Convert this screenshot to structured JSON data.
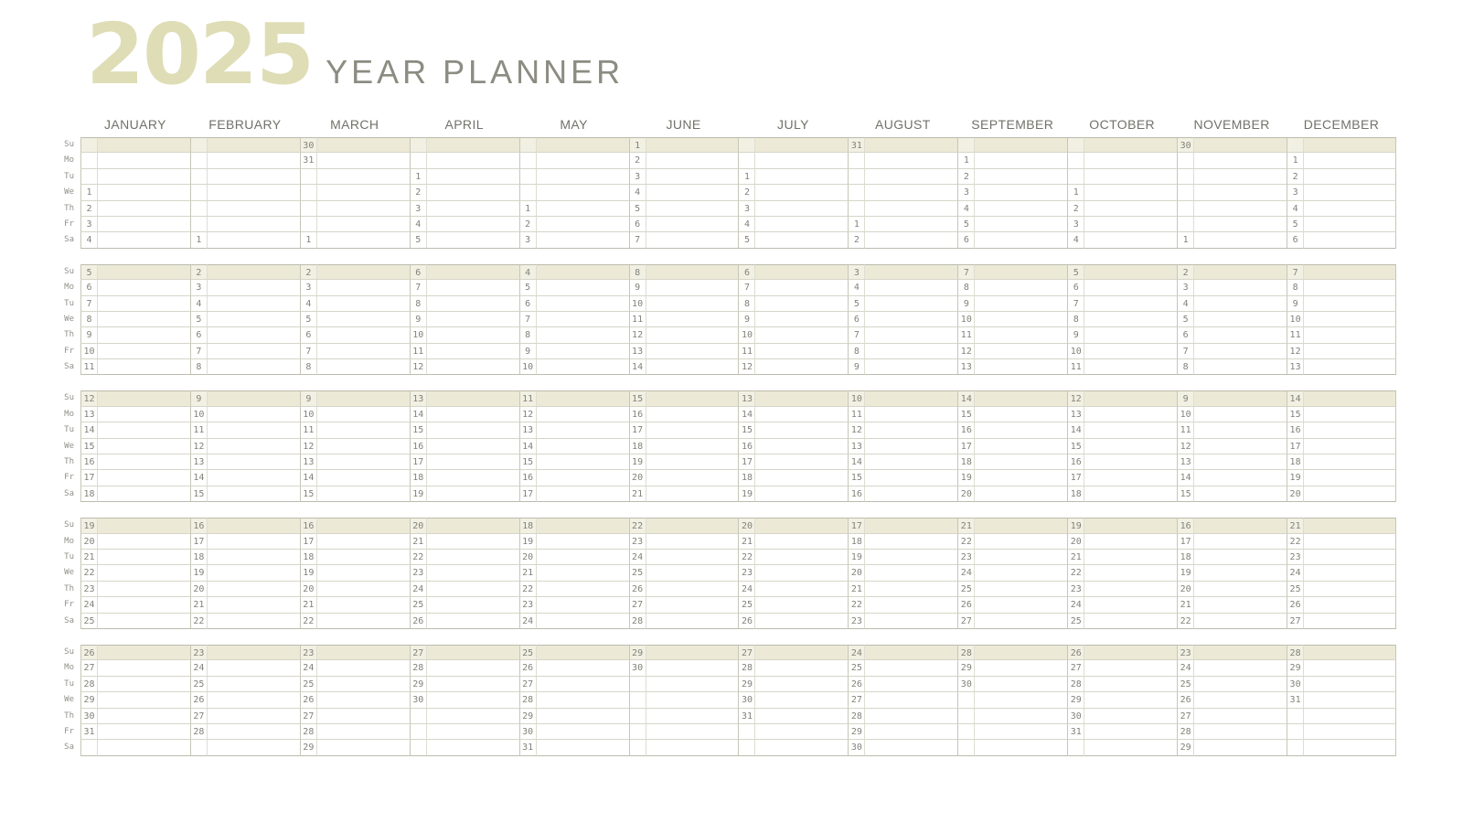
{
  "title": {
    "year": "2025",
    "subtitle": "YEAR PLANNER"
  },
  "months": [
    "JANUARY",
    "FEBRUARY",
    "MARCH",
    "APRIL",
    "MAY",
    "JUNE",
    "JULY",
    "AUGUST",
    "SEPTEMBER",
    "OCTOBER",
    "NOVEMBER",
    "DECEMBER"
  ],
  "day_labels": [
    "Su",
    "Mo",
    "Tu",
    "We",
    "Th",
    "Fr",
    "Sa"
  ],
  "colors": {
    "title_beige": "#deddb6",
    "subtitle_gray": "#8c8c82",
    "month_text": "#72726a",
    "sunday_row_bg": "#ecead6",
    "sunday_num_bg": "#f2f0e2",
    "border_light": "#d6d5c8",
    "border_faint": "#deddd2",
    "border_strong": "#bcbbad",
    "border_strong2": "#c7c6b7",
    "number_text": "#82827a",
    "label_text": "#90908a"
  },
  "grid": {
    "blocks": [
      {
        "rows": [
          {
            "label": "Su",
            "days": [
              "",
              "",
              "30",
              "",
              "",
              "1",
              "",
              "31",
              "",
              "",
              "30",
              ""
            ]
          },
          {
            "label": "Mo",
            "days": [
              "",
              "",
              "31",
              "",
              "",
              "2",
              "",
              "",
              "1",
              "",
              "",
              "1"
            ]
          },
          {
            "label": "Tu",
            "days": [
              "",
              "",
              "",
              "1",
              "",
              "3",
              "1",
              "",
              "2",
              "",
              "",
              "2"
            ]
          },
          {
            "label": "We",
            "days": [
              "1",
              "",
              "",
              "2",
              "",
              "4",
              "2",
              "",
              "3",
              "1",
              "",
              "3"
            ]
          },
          {
            "label": "Th",
            "days": [
              "2",
              "",
              "",
              "3",
              "1",
              "5",
              "3",
              "",
              "4",
              "2",
              "",
              "4"
            ]
          },
          {
            "label": "Fr",
            "days": [
              "3",
              "",
              "",
              "4",
              "2",
              "6",
              "4",
              "1",
              "5",
              "3",
              "",
              "5"
            ]
          },
          {
            "label": "Sa",
            "days": [
              "4",
              "1",
              "1",
              "5",
              "3",
              "7",
              "5",
              "2",
              "6",
              "4",
              "1",
              "6"
            ]
          }
        ]
      },
      {
        "rows": [
          {
            "label": "Su",
            "days": [
              "5",
              "2",
              "2",
              "6",
              "4",
              "8",
              "6",
              "3",
              "7",
              "5",
              "2",
              "7"
            ]
          },
          {
            "label": "Mo",
            "days": [
              "6",
              "3",
              "3",
              "7",
              "5",
              "9",
              "7",
              "4",
              "8",
              "6",
              "3",
              "8"
            ]
          },
          {
            "label": "Tu",
            "days": [
              "7",
              "4",
              "4",
              "8",
              "6",
              "10",
              "8",
              "5",
              "9",
              "7",
              "4",
              "9"
            ]
          },
          {
            "label": "We",
            "days": [
              "8",
              "5",
              "5",
              "9",
              "7",
              "11",
              "9",
              "6",
              "10",
              "8",
              "5",
              "10"
            ]
          },
          {
            "label": "Th",
            "days": [
              "9",
              "6",
              "6",
              "10",
              "8",
              "12",
              "10",
              "7",
              "11",
              "9",
              "6",
              "11"
            ]
          },
          {
            "label": "Fr",
            "days": [
              "10",
              "7",
              "7",
              "11",
              "9",
              "13",
              "11",
              "8",
              "12",
              "10",
              "7",
              "12"
            ]
          },
          {
            "label": "Sa",
            "days": [
              "11",
              "8",
              "8",
              "12",
              "10",
              "14",
              "12",
              "9",
              "13",
              "11",
              "8",
              "13"
            ]
          }
        ]
      },
      {
        "rows": [
          {
            "label": "Su",
            "days": [
              "12",
              "9",
              "9",
              "13",
              "11",
              "15",
              "13",
              "10",
              "14",
              "12",
              "9",
              "14"
            ]
          },
          {
            "label": "Mo",
            "days": [
              "13",
              "10",
              "10",
              "14",
              "12",
              "16",
              "14",
              "11",
              "15",
              "13",
              "10",
              "15"
            ]
          },
          {
            "label": "Tu",
            "days": [
              "14",
              "11",
              "11",
              "15",
              "13",
              "17",
              "15",
              "12",
              "16",
              "14",
              "11",
              "16"
            ]
          },
          {
            "label": "We",
            "days": [
              "15",
              "12",
              "12",
              "16",
              "14",
              "18",
              "16",
              "13",
              "17",
              "15",
              "12",
              "17"
            ]
          },
          {
            "label": "Th",
            "days": [
              "16",
              "13",
              "13",
              "17",
              "15",
              "19",
              "17",
              "14",
              "18",
              "16",
              "13",
              "18"
            ]
          },
          {
            "label": "Fr",
            "days": [
              "17",
              "14",
              "14",
              "18",
              "16",
              "20",
              "18",
              "15",
              "19",
              "17",
              "14",
              "19"
            ]
          },
          {
            "label": "Sa",
            "days": [
              "18",
              "15",
              "15",
              "19",
              "17",
              "21",
              "19",
              "16",
              "20",
              "18",
              "15",
              "20"
            ]
          }
        ]
      },
      {
        "rows": [
          {
            "label": "Su",
            "days": [
              "19",
              "16",
              "16",
              "20",
              "18",
              "22",
              "20",
              "17",
              "21",
              "19",
              "16",
              "21"
            ]
          },
          {
            "label": "Mo",
            "days": [
              "20",
              "17",
              "17",
              "21",
              "19",
              "23",
              "21",
              "18",
              "22",
              "20",
              "17",
              "22"
            ]
          },
          {
            "label": "Tu",
            "days": [
              "21",
              "18",
              "18",
              "22",
              "20",
              "24",
              "22",
              "19",
              "23",
              "21",
              "18",
              "23"
            ]
          },
          {
            "label": "We",
            "days": [
              "22",
              "19",
              "19",
              "23",
              "21",
              "25",
              "23",
              "20",
              "24",
              "22",
              "19",
              "24"
            ]
          },
          {
            "label": "Th",
            "days": [
              "23",
              "20",
              "20",
              "24",
              "22",
              "26",
              "24",
              "21",
              "25",
              "23",
              "20",
              "25"
            ]
          },
          {
            "label": "Fr",
            "days": [
              "24",
              "21",
              "21",
              "25",
              "23",
              "27",
              "25",
              "22",
              "26",
              "24",
              "21",
              "26"
            ]
          },
          {
            "label": "Sa",
            "days": [
              "25",
              "22",
              "22",
              "26",
              "24",
              "28",
              "26",
              "23",
              "27",
              "25",
              "22",
              "27"
            ]
          }
        ]
      },
      {
        "rows": [
          {
            "label": "Su",
            "days": [
              "26",
              "23",
              "23",
              "27",
              "25",
              "29",
              "27",
              "24",
              "28",
              "26",
              "23",
              "28"
            ]
          },
          {
            "label": "Mo",
            "days": [
              "27",
              "24",
              "24",
              "28",
              "26",
              "30",
              "28",
              "25",
              "29",
              "27",
              "24",
              "29"
            ]
          },
          {
            "label": "Tu",
            "days": [
              "28",
              "25",
              "25",
              "29",
              "27",
              "",
              "29",
              "26",
              "30",
              "28",
              "25",
              "30"
            ]
          },
          {
            "label": "We",
            "days": [
              "29",
              "26",
              "26",
              "30",
              "28",
              "",
              "30",
              "27",
              "",
              "29",
              "26",
              "31"
            ]
          },
          {
            "label": "Th",
            "days": [
              "30",
              "27",
              "27",
              "",
              "29",
              "",
              "31",
              "28",
              "",
              "30",
              "27",
              ""
            ]
          },
          {
            "label": "Fr",
            "days": [
              "31",
              "28",
              "28",
              "",
              "30",
              "",
              "",
              "29",
              "",
              "31",
              "28",
              ""
            ]
          },
          {
            "label": "Sa",
            "days": [
              "",
              "",
              "29",
              "",
              "31",
              "",
              "",
              "30",
              "",
              "",
              "29",
              ""
            ]
          }
        ]
      }
    ]
  }
}
